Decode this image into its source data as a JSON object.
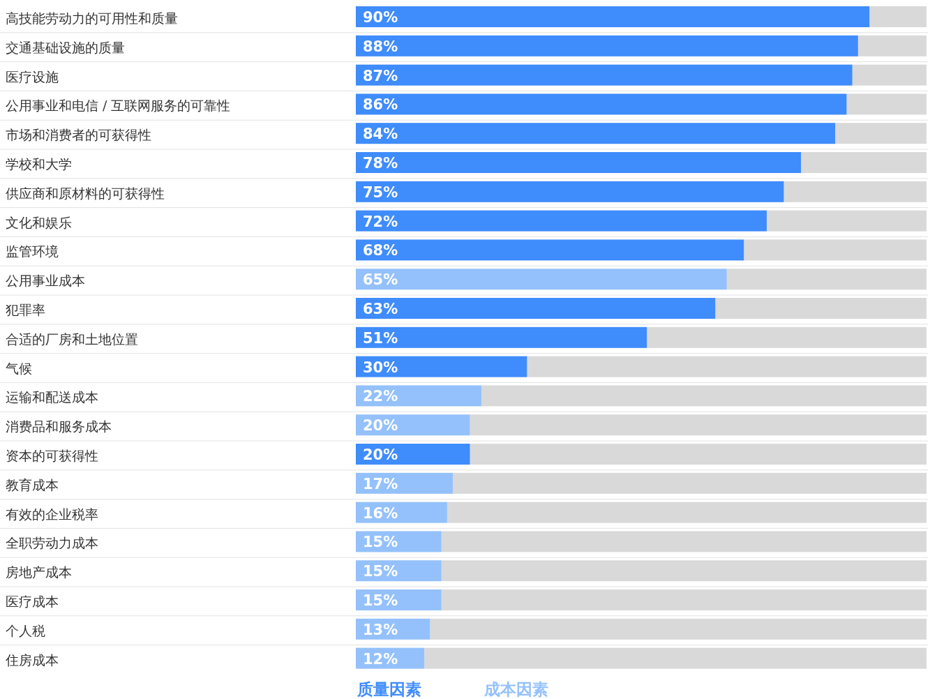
{
  "chart_data": {
    "type": "bar",
    "orientation": "horizontal",
    "legend": "bottom",
    "tick_labels": "y",
    "xlim": [
      0,
      100
    ],
    "categories": [
      "高技能劳动力的可用性和质量",
      "交通基础设施的质量",
      "医疗设施",
      "公用事业和电信 / 互联网服务的可靠性",
      "市场和消费者的可获得性",
      "学校和大学",
      "供应商和原材料的可获得性",
      "文化和娱乐",
      "监管环境",
      "公用事业成本",
      "犯罪率",
      "合适的厂房和土地位置",
      "气候",
      "运输和配送成本",
      "消费品和服务成本",
      "资本的可获得性",
      "教育成本",
      "有效的企业税率",
      "全职劳动力成本",
      "房地产成本",
      "医疗成本",
      "个人税",
      "住房成本"
    ],
    "series": [
      {
        "name": "质量因素",
        "color": "#3f8cfc",
        "values": [
          90,
          88,
          87,
          86,
          84,
          78,
          75,
          72,
          68,
          null,
          63,
          51,
          30,
          null,
          null,
          20,
          null,
          null,
          null,
          null,
          null,
          null,
          null
        ],
        "value_labels": [
          "90%",
          "88%",
          "87%",
          "86%",
          "84%",
          "78%",
          "75%",
          "72%",
          "68%",
          null,
          "63%",
          "51%",
          "30%",
          null,
          null,
          "20%",
          null,
          null,
          null,
          null,
          null,
          null,
          null
        ]
      },
      {
        "name": "成本因素",
        "color": "#94c1fb",
        "values": [
          null,
          null,
          null,
          null,
          null,
          null,
          null,
          null,
          null,
          65,
          null,
          null,
          null,
          22,
          20,
          null,
          17,
          16,
          15,
          15,
          15,
          13,
          12
        ],
        "value_labels": [
          null,
          null,
          null,
          null,
          null,
          null,
          null,
          null,
          null,
          "65%",
          null,
          null,
          null,
          "22%",
          "20%",
          null,
          "17%",
          "16%",
          "15%",
          "15%",
          "15%",
          "13%",
          "12%"
        ]
      }
    ]
  }
}
